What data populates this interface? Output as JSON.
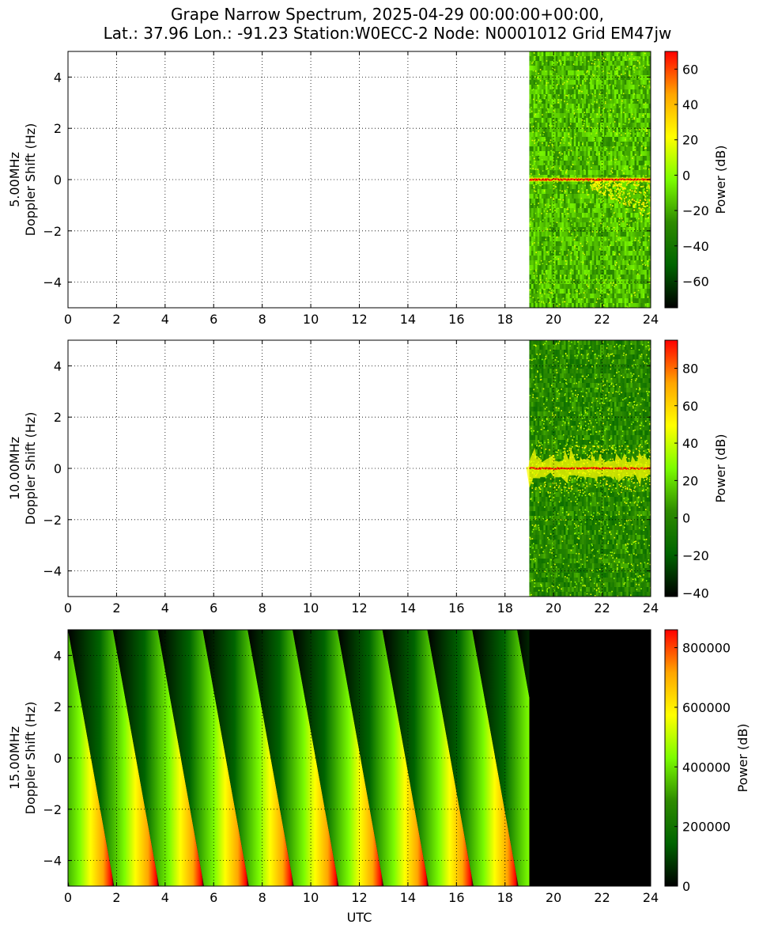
{
  "figure": {
    "title_line1": "Grape Narrow Spectrum, 2025-04-29 00:00:00+00:00,",
    "title_line2": "Lat.: 37.96 Lon.: -91.23 Station:W0ECC-2 Node: N0001012 Grid EM47jw",
    "colorbar_label": "Power (dB)",
    "colormap": [
      "#000000",
      "#006400",
      "#2e8b00",
      "#7cfc00",
      "#ffff00",
      "#ffa500",
      "#ff0000"
    ]
  },
  "chart_data": [
    {
      "type": "heatmap",
      "title": "",
      "ylabel_line1": "5.00MHz",
      "ylabel_line2": "Doppler Shift (Hz)",
      "xlabel": "",
      "xlim": [
        0,
        24
      ],
      "ylim": [
        -5,
        5
      ],
      "xticks": [
        "0",
        "2",
        "4",
        "6",
        "8",
        "10",
        "12",
        "14",
        "16",
        "18",
        "20",
        "22",
        "24"
      ],
      "yticks": [
        "4",
        "2",
        "0",
        "−2",
        "−4"
      ],
      "ytick_values": [
        4,
        2,
        0,
        -2,
        -4
      ],
      "data_start_utc": 19.0,
      "data_end_utc": 24.0,
      "pattern": "noise_with_carrier",
      "carrier_hz": 0,
      "colorbar": {
        "min": -75,
        "max": 70,
        "ticks": [
          "60",
          "40",
          "20",
          "0",
          "−20",
          "−40",
          "−60"
        ],
        "tick_values": [
          60,
          40,
          20,
          0,
          -20,
          -40,
          -60
        ]
      },
      "grid": true
    },
    {
      "type": "heatmap",
      "title": "",
      "ylabel_line1": "10.00MHz",
      "ylabel_line2": "Doppler Shift (Hz)",
      "xlabel": "",
      "xlim": [
        0,
        24
      ],
      "ylim": [
        -5,
        5
      ],
      "xticks": [
        "0",
        "2",
        "4",
        "6",
        "8",
        "10",
        "12",
        "14",
        "16",
        "18",
        "20",
        "22",
        "24"
      ],
      "yticks": [
        "4",
        "2",
        "0",
        "−2",
        "−4"
      ],
      "ytick_values": [
        4,
        2,
        0,
        -2,
        -4
      ],
      "data_start_utc": 19.0,
      "data_end_utc": 24.0,
      "pattern": "noise_with_wavy_carrier",
      "carrier_hz": 0,
      "colorbar": {
        "min": -42,
        "max": 95,
        "ticks": [
          "80",
          "60",
          "40",
          "20",
          "0",
          "−20",
          "−40"
        ],
        "tick_values": [
          80,
          60,
          40,
          20,
          0,
          -20,
          -40
        ]
      },
      "grid": true
    },
    {
      "type": "heatmap",
      "title": "",
      "ylabel_line1": "15.00MHz",
      "ylabel_line2": "Doppler Shift (Hz)",
      "xlabel": "UTC",
      "xlim": [
        0,
        24
      ],
      "ylim": [
        -5,
        5
      ],
      "xticks": [
        "0",
        "2",
        "4",
        "6",
        "8",
        "10",
        "12",
        "14",
        "16",
        "18",
        "20",
        "22",
        "24"
      ],
      "yticks": [
        "4",
        "2",
        "0",
        "−2",
        "−4"
      ],
      "ytick_values": [
        4,
        2,
        0,
        -2,
        -4
      ],
      "data_start_utc": 0.0,
      "data_end_utc": 19.0,
      "pattern": "diagonal_stripes",
      "stripe_period_utc": 1.85,
      "colorbar": {
        "min": 0,
        "max": 860000,
        "ticks": [
          "800000",
          "600000",
          "400000",
          "200000",
          "0"
        ],
        "tick_values": [
          800000,
          600000,
          400000,
          200000,
          0
        ]
      },
      "grid": true
    }
  ]
}
